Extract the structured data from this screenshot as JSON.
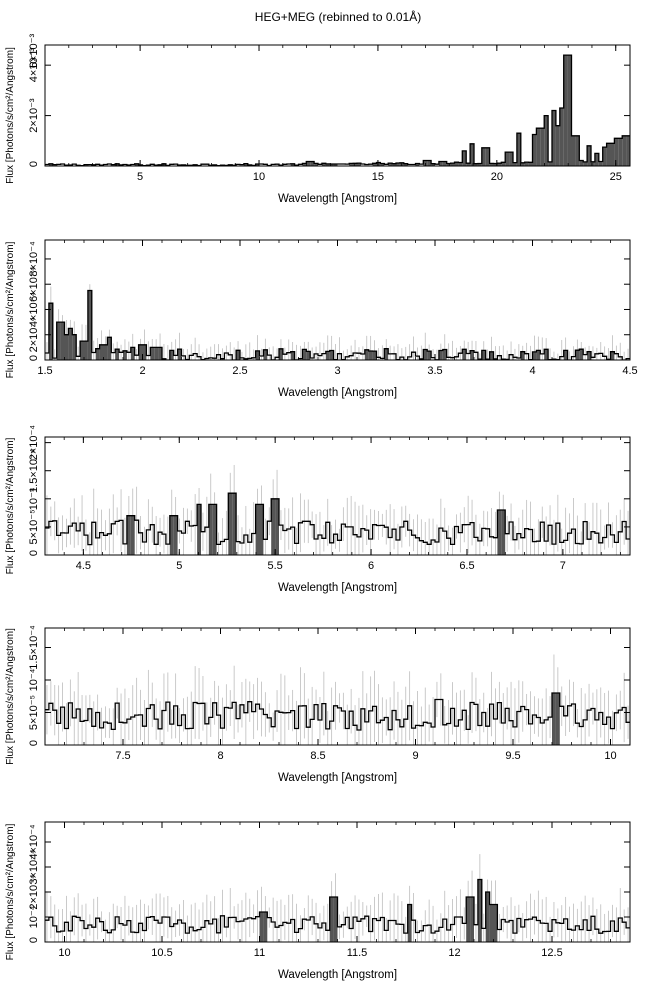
{
  "title": "HEG+MEG (rebinned to 0.01Å)",
  "chart_data": [
    {
      "type": "line",
      "xlabel": "Wavelength [Angstrom]",
      "ylabel": "Flux [Photons/s/cm²/Angstrom]",
      "xlim": [
        1.0,
        25.6
      ],
      "ylim": [
        0,
        0.0048
      ],
      "xticks": [
        5,
        10,
        15,
        20,
        25
      ],
      "yticks": [
        {
          "v": 0.002,
          "label": "2×10⁻³"
        },
        {
          "v": 0.004,
          "label": "4×10⁻³"
        },
        {
          "v": 0.006,
          "label": "6×10⁻³"
        }
      ],
      "peaks": [
        [
          12.13,
          0.00018
        ],
        [
          13.45,
          8e-05
        ],
        [
          15.01,
          0.00014
        ],
        [
          16.0,
          0.0001
        ],
        [
          17.05,
          0.00022
        ],
        [
          17.77,
          0.00018
        ],
        [
          18.63,
          0.0006
        ],
        [
          18.97,
          0.00088
        ],
        [
          19.5,
          0.00072
        ],
        [
          20.5,
          0.00055
        ],
        [
          20.9,
          0.0013
        ],
        [
          21.6,
          0.00125
        ],
        [
          21.8,
          0.0015
        ],
        [
          22.1,
          0.002
        ],
        [
          22.4,
          0.0022
        ],
        [
          22.55,
          0.0016
        ],
        [
          22.8,
          0.0023
        ],
        [
          23.0,
          0.0044
        ],
        [
          23.35,
          0.0012
        ],
        [
          23.85,
          0.0008
        ],
        [
          24.2,
          0.0005
        ],
        [
          24.55,
          0.00075
        ],
        [
          24.8,
          0.0009
        ],
        [
          25.1,
          0.0011
        ],
        [
          25.4,
          0.0012
        ]
      ],
      "baseline": 5e-05,
      "noise": 4e-05,
      "continuum_growth": 0.00018,
      "errors": false
    },
    {
      "type": "line",
      "xlabel": "Wavelength [Angstrom]",
      "ylabel": "Flux [Photons/s/cm²/Angstrom]",
      "xlim": [
        1.5,
        4.5
      ],
      "ylim": [
        0,
        0.00095
      ],
      "xticks": [
        1.5,
        2,
        2.5,
        3,
        3.5,
        4,
        4.5
      ],
      "yticks": [
        {
          "v": 0.0002,
          "label": "2×10⁻⁴"
        },
        {
          "v": 0.0004,
          "label": "4×10⁻⁴"
        },
        {
          "v": 0.0006,
          "label": "6×10⁻⁴"
        },
        {
          "v": 0.0008,
          "label": "8×10⁻⁴"
        }
      ],
      "peaks": [
        [
          1.53,
          0.00045
        ],
        [
          1.58,
          0.0003
        ],
        [
          1.6,
          0.0002
        ],
        [
          1.63,
          0.00025
        ],
        [
          1.65,
          0.0002
        ],
        [
          1.7,
          0.00015
        ],
        [
          1.73,
          0.00055
        ],
        [
          1.8,
          0.00012
        ],
        [
          1.83,
          0.00018
        ],
        [
          1.95,
          0.0001
        ],
        [
          2.0,
          0.00012
        ],
        [
          2.06,
          0.0001
        ],
        [
          2.08,
          0.0001
        ]
      ],
      "baseline": 4e-05,
      "noise": 5e-05,
      "errors": true,
      "error_scale": 9e-05
    },
    {
      "type": "line",
      "xlabel": "Wavelength [Angstrom]",
      "ylabel": "Flux [Photons/s/cm²/Angstrom]",
      "xlim": [
        4.3,
        7.35
      ],
      "ylim": [
        0,
        0.00021
      ],
      "xticks": [
        4.5,
        5,
        5.5,
        6,
        6.5,
        7
      ],
      "yticks": [
        {
          "v": 5e-05,
          "label": "5×10⁻⁵"
        },
        {
          "v": 0.0001,
          "label": "10⁻⁴"
        },
        {
          "v": 0.00015,
          "label": "1.5×10⁻⁴"
        },
        {
          "v": 0.0002,
          "label": "2×10⁻⁴"
        }
      ],
      "peaks": [
        [
          4.75,
          7e-05
        ],
        [
          4.97,
          7e-05
        ],
        [
          5.04,
          6e-05
        ],
        [
          5.1,
          9e-05
        ],
        [
          5.18,
          9e-05
        ],
        [
          5.27,
          0.00011
        ],
        [
          5.42,
          9e-05
        ],
        [
          5.5,
          0.0001
        ],
        [
          5.66,
          6e-05
        ],
        [
          5.88,
          5e-05
        ],
        [
          6.18,
          6e-05
        ],
        [
          6.68,
          8e-05
        ]
      ],
      "baseline": 4e-05,
      "noise": 2.2e-05,
      "errors": true,
      "error_scale": 4e-05
    },
    {
      "type": "line",
      "xlabel": "Wavelength [Angstrom]",
      "ylabel": "Flux [Photons/s/cm²/Angstrom]",
      "xlim": [
        7.1,
        10.1
      ],
      "ylim": [
        0,
        0.00018
      ],
      "xticks": [
        7.5,
        8,
        8.5,
        9,
        9.5,
        10
      ],
      "yticks": [
        {
          "v": 5e-05,
          "label": "5×10⁻⁵"
        },
        {
          "v": 0.0001,
          "label": "10⁻⁴"
        },
        {
          "v": 0.00015,
          "label": "1.5×10⁻⁴"
        }
      ],
      "peaks": [
        [
          7.37,
          5e-05
        ],
        [
          8.42,
          6e-05
        ],
        [
          9.12,
          7e-05
        ],
        [
          9.35,
          5e-05
        ],
        [
          9.72,
          8e-05
        ],
        [
          9.95,
          5e-05
        ]
      ],
      "baseline": 4.5e-05,
      "noise": 2.2e-05,
      "errors": true,
      "error_scale": 4e-05
    },
    {
      "type": "line",
      "xlabel": "Wavelength [Angstrom]",
      "ylabel": "Flux [Photons/s/cm²/Angstrom]",
      "xlim": [
        9.9,
        12.9
      ],
      "ylim": [
        0,
        0.00048
      ],
      "xticks": [
        10,
        10.5,
        11,
        11.5,
        12,
        12.5
      ],
      "yticks": [
        {
          "v": 0.0001,
          "label": "10⁻⁴"
        },
        {
          "v": 0.0002,
          "label": "2×10⁻⁴"
        },
        {
          "v": 0.0003,
          "label": "3×10⁻⁴"
        },
        {
          "v": 0.0004,
          "label": "4×10⁻⁴"
        }
      ],
      "peaks": [
        [
          11.02,
          0.00012
        ],
        [
          11.17,
          9e-05
        ],
        [
          11.25,
          8e-05
        ],
        [
          11.38,
          0.00018
        ],
        [
          11.53,
          8e-05
        ],
        [
          11.77,
          0.00015
        ],
        [
          12.02,
          0.0001
        ],
        [
          12.08,
          0.00018
        ],
        [
          12.13,
          0.00025
        ],
        [
          12.17,
          0.0002
        ],
        [
          12.2,
          0.00015
        ],
        [
          12.27,
          8e-05
        ]
      ],
      "baseline": 7e-05,
      "noise": 3.5e-05,
      "errors": true,
      "error_scale": 8e-05
    }
  ]
}
